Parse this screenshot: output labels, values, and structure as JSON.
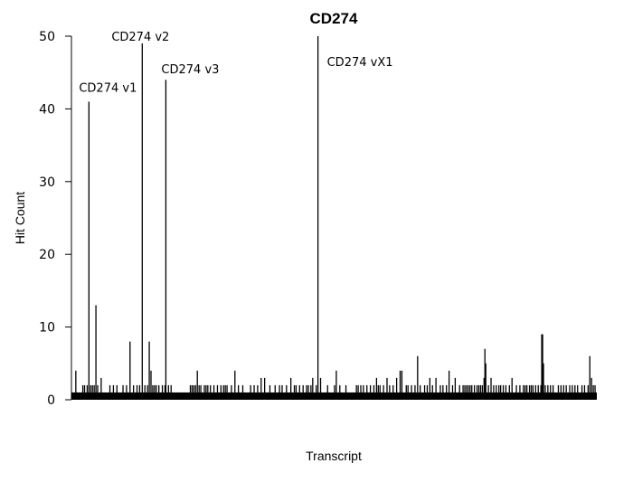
{
  "chart_data": {
    "type": "bar",
    "title": "CD274",
    "xlabel": "Transcript",
    "ylabel": "Hit Count",
    "ylim": [
      0,
      50
    ],
    "yticks": [
      0,
      10,
      20,
      30,
      40,
      50
    ],
    "n_transcripts": 600,
    "default_value": 1,
    "values_by_index": {
      "4": 4,
      "12": 2,
      "14": 2,
      "17": 2,
      "19": 41,
      "21": 2,
      "23": 2,
      "25": 2,
      "27": 13,
      "29": 2,
      "33": 3,
      "43": 2,
      "47": 2,
      "51": 2,
      "58": 2,
      "62": 2,
      "66": 8,
      "70": 2,
      "74": 2,
      "77": 2,
      "80": 49,
      "83": 2,
      "86": 2,
      "88": 8,
      "90": 4,
      "92": 2,
      "94": 2,
      "96": 2,
      "99": 2,
      "103": 2,
      "106": 2,
      "107": 44,
      "110": 2,
      "113": 2,
      "135": 2,
      "137": 2,
      "139": 2,
      "141": 2,
      "143": 4,
      "145": 2,
      "147": 2,
      "151": 2,
      "153": 2,
      "155": 2,
      "158": 2,
      "162": 2,
      "166": 2,
      "170": 2,
      "173": 2,
      "175": 2,
      "177": 2,
      "182": 2,
      "186": 4,
      "190": 2,
      "195": 2,
      "204": 2,
      "208": 2,
      "212": 2,
      "216": 3,
      "220": 3,
      "226": 2,
      "232": 2,
      "237": 2,
      "240": 2,
      "245": 2,
      "250": 3,
      "254": 2,
      "256": 2,
      "260": 2,
      "264": 2,
      "268": 2,
      "270": 2,
      "273": 2,
      "275": 3,
      "279": 2,
      "281": 50,
      "284": 3,
      "292": 2,
      "300": 2,
      "302": 4,
      "306": 2,
      "313": 2,
      "325": 2,
      "327": 2,
      "330": 2,
      "333": 2,
      "337": 2,
      "341": 2,
      "345": 2,
      "348": 3,
      "350": 2,
      "352": 2,
      "356": 2,
      "360": 3,
      "363": 2,
      "367": 2,
      "371": 3,
      "375": 4,
      "377": 4,
      "382": 2,
      "384": 2,
      "388": 2,
      "392": 2,
      "395": 6,
      "398": 2,
      "403": 2,
      "406": 2,
      "409": 3,
      "412": 2,
      "416": 3,
      "421": 2,
      "424": 2,
      "428": 2,
      "431": 4,
      "435": 2,
      "438": 3,
      "443": 2,
      "447": 2,
      "449": 2,
      "451": 2,
      "453": 2,
      "455": 2,
      "457": 2,
      "460": 2,
      "463": 2,
      "465": 2,
      "467": 2,
      "469": 2,
      "471": 3,
      "472": 7,
      "473": 5,
      "476": 2,
      "479": 3,
      "482": 2,
      "485": 2,
      "488": 2,
      "490": 2,
      "493": 2,
      "496": 2,
      "500": 2,
      "503": 3,
      "508": 2,
      "512": 2,
      "516": 2,
      "518": 2,
      "520": 2,
      "523": 2,
      "525": 2,
      "527": 2,
      "530": 2,
      "533": 2,
      "536": 2,
      "537": 9,
      "538": 9,
      "539": 5,
      "541": 2,
      "544": 2,
      "547": 2,
      "550": 2,
      "556": 2,
      "559": 2,
      "562": 2,
      "565": 2,
      "569": 2,
      "572": 2,
      "575": 2,
      "578": 2,
      "583": 2,
      "586": 2,
      "590": 2,
      "592": 6,
      "594": 3,
      "596": 2,
      "598": 2
    },
    "annotations": [
      {
        "text": "CD274 v1",
        "index": 19
      },
      {
        "text": "CD274 v2",
        "index": 80
      },
      {
        "text": "CD274 v3",
        "index": 107
      },
      {
        "text": "CD274 vX1",
        "index": 281
      }
    ]
  }
}
